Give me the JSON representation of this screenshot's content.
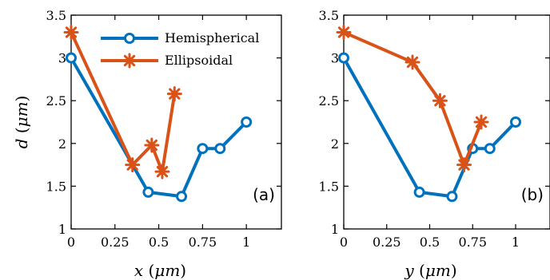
{
  "colors": {
    "hemispherical": "#0072BD",
    "ellipsoidal": "#D95319"
  },
  "chart_data": [
    {
      "type": "line",
      "panel_label": "(a)",
      "xlabel": "x (μm)",
      "ylabel": "d (μm)",
      "xlim": [
        0,
        1.2
      ],
      "ylim": [
        1,
        3.5
      ],
      "xticks": [
        "0",
        "0.25",
        "0.5",
        "0.75",
        "1"
      ],
      "xtick_values": [
        0,
        0.25,
        0.5,
        0.75,
        1
      ],
      "yticks": [
        "1",
        "1.5",
        "2",
        "2.5",
        "3",
        "3.5"
      ],
      "ytick_values": [
        1,
        1.5,
        2,
        2.5,
        3,
        3.5
      ],
      "legend_position": "top-right",
      "series": [
        {
          "name": "Hemispherical",
          "marker": "circle",
          "x": [
            0,
            0.44,
            0.63,
            0.75,
            0.85,
            1.0
          ],
          "y": [
            3.0,
            1.43,
            1.38,
            1.94,
            1.94,
            2.25
          ]
        },
        {
          "name": "Ellipsoidal",
          "marker": "asterisk",
          "x": [
            0,
            0.35,
            0.46,
            0.52,
            0.59
          ],
          "y": [
            3.3,
            1.75,
            1.98,
            1.67,
            2.58
          ]
        }
      ]
    },
    {
      "type": "line",
      "panel_label": "(b)",
      "xlabel": "y (μm)",
      "ylabel": "",
      "xlim": [
        0,
        1.2
      ],
      "ylim": [
        1,
        3.5
      ],
      "xticks": [
        "0",
        "0.25",
        "0.5",
        "0.75",
        "1"
      ],
      "xtick_values": [
        0,
        0.25,
        0.5,
        0.75,
        1
      ],
      "yticks": [
        "1",
        "1.5",
        "2",
        "2.5",
        "3",
        "3.5"
      ],
      "ytick_values": [
        1,
        1.5,
        2,
        2.5,
        3,
        3.5
      ],
      "series": [
        {
          "name": "Hemispherical",
          "marker": "circle",
          "x": [
            0,
            0.44,
            0.63,
            0.75,
            0.85,
            1.0
          ],
          "y": [
            3.0,
            1.43,
            1.38,
            1.94,
            1.94,
            2.25
          ]
        },
        {
          "name": "Ellipsoidal",
          "marker": "asterisk",
          "x": [
            0,
            0.4,
            0.56,
            0.7,
            0.8
          ],
          "y": [
            3.3,
            2.95,
            2.5,
            1.75,
            2.25
          ]
        }
      ]
    }
  ]
}
